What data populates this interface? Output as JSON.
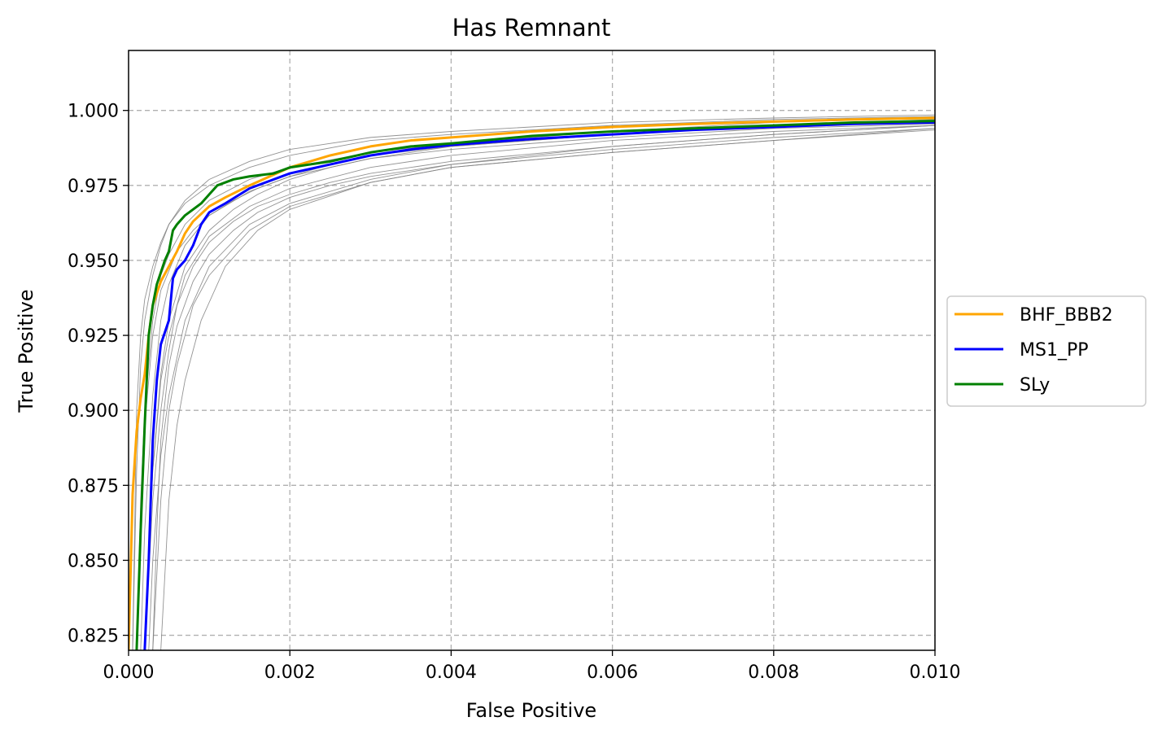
{
  "chart_data": {
    "type": "line",
    "title": "Has Remnant",
    "xlabel": "False Positive",
    "ylabel": "True Positive",
    "xlim": [
      0.0,
      0.01
    ],
    "ylim": [
      0.82,
      1.02
    ],
    "xticks": [
      0.0,
      0.002,
      0.004,
      0.006,
      0.008,
      0.01
    ],
    "xtick_labels": [
      "0.000",
      "0.002",
      "0.004",
      "0.006",
      "0.008",
      "0.010"
    ],
    "yticks": [
      0.825,
      0.85,
      0.875,
      0.9,
      0.925,
      0.95,
      0.975,
      1.0
    ],
    "ytick_labels": [
      "0.825",
      "0.850",
      "0.875",
      "0.900",
      "0.925",
      "0.950",
      "0.975",
      "1.000"
    ],
    "grid": true,
    "legend_position": "outside-right",
    "colors": {
      "axis": "#000000",
      "grid": "#b0b0b0",
      "background_curves": "#808080"
    },
    "series": [
      {
        "name": "BHF_BBB2",
        "color": "#ffa500",
        "x": [
          0.0,
          5e-05,
          0.0001,
          0.00015,
          0.0002,
          0.00025,
          0.0003,
          0.0004,
          0.0005,
          0.0006,
          0.0007,
          0.0008,
          0.001,
          0.0012,
          0.0015,
          0.002,
          0.0025,
          0.003,
          0.0035,
          0.004,
          0.005,
          0.006,
          0.007,
          0.008,
          0.009,
          0.01
        ],
        "y": [
          0.82,
          0.872,
          0.893,
          0.904,
          0.912,
          0.925,
          0.935,
          0.943,
          0.948,
          0.953,
          0.959,
          0.963,
          0.968,
          0.971,
          0.975,
          0.981,
          0.985,
          0.988,
          0.99,
          0.991,
          0.993,
          0.9945,
          0.9955,
          0.9963,
          0.997,
          0.9975
        ]
      },
      {
        "name": "MS1_PP",
        "color": "#0000ff",
        "x": [
          0.0002,
          0.00025,
          0.0003,
          0.00035,
          0.0004,
          0.0005,
          0.00055,
          0.0006,
          0.0007,
          0.0008,
          0.0009,
          0.001,
          0.0012,
          0.0015,
          0.002,
          0.0025,
          0.003,
          0.0035,
          0.004,
          0.005,
          0.006,
          0.007,
          0.008,
          0.009,
          0.01
        ],
        "y": [
          0.82,
          0.85,
          0.89,
          0.91,
          0.922,
          0.93,
          0.944,
          0.947,
          0.95,
          0.955,
          0.962,
          0.966,
          0.969,
          0.974,
          0.979,
          0.982,
          0.985,
          0.987,
          0.9885,
          0.9905,
          0.992,
          0.9935,
          0.9945,
          0.9955,
          0.996
        ]
      },
      {
        "name": "SLy",
        "color": "#008000",
        "x": [
          0.0001,
          0.00015,
          0.0002,
          0.00025,
          0.0003,
          0.00035,
          0.0004,
          0.00045,
          0.0005,
          0.00055,
          0.0006,
          0.0007,
          0.0008,
          0.0009,
          0.001,
          0.0011,
          0.0013,
          0.0015,
          0.0018,
          0.002,
          0.0025,
          0.003,
          0.0035,
          0.004,
          0.005,
          0.006,
          0.007,
          0.008,
          0.009,
          0.01
        ],
        "y": [
          0.82,
          0.86,
          0.895,
          0.925,
          0.935,
          0.942,
          0.946,
          0.95,
          0.953,
          0.96,
          0.962,
          0.965,
          0.967,
          0.969,
          0.972,
          0.975,
          0.977,
          0.978,
          0.979,
          0.981,
          0.983,
          0.986,
          0.988,
          0.989,
          0.9915,
          0.993,
          0.994,
          0.995,
          0.996,
          0.9965
        ]
      }
    ],
    "background_curves": [
      {
        "x": [
          5e-05,
          0.0001,
          0.00015,
          0.0002,
          0.0003,
          0.0004,
          0.0005,
          0.0007,
          0.001,
          0.0015,
          0.002,
          0.003,
          0.004,
          0.006,
          0.008,
          0.01
        ],
        "y": [
          0.82,
          0.9,
          0.925,
          0.937,
          0.948,
          0.956,
          0.962,
          0.969,
          0.975,
          0.981,
          0.985,
          0.99,
          0.992,
          0.995,
          0.997,
          0.998
        ]
      },
      {
        "x": [
          5e-05,
          0.0001,
          0.00015,
          0.0002,
          0.0003,
          0.0004,
          0.0005,
          0.0007,
          0.001,
          0.0015,
          0.002,
          0.003,
          0.004,
          0.006,
          0.008,
          0.01
        ],
        "y": [
          0.82,
          0.88,
          0.915,
          0.93,
          0.945,
          0.955,
          0.962,
          0.97,
          0.977,
          0.983,
          0.987,
          0.991,
          0.993,
          0.996,
          0.9975,
          0.9985
        ]
      },
      {
        "x": [
          0.0001,
          0.00015,
          0.0002,
          0.0003,
          0.0004,
          0.0005,
          0.0007,
          0.001,
          0.0015,
          0.002,
          0.003,
          0.004,
          0.006,
          0.008,
          0.01
        ],
        "y": [
          0.82,
          0.87,
          0.9,
          0.93,
          0.945,
          0.952,
          0.962,
          0.97,
          0.977,
          0.981,
          0.986,
          0.989,
          0.993,
          0.996,
          0.9975
        ]
      },
      {
        "x": [
          0.00015,
          0.0002,
          0.0003,
          0.0004,
          0.0005,
          0.0007,
          0.001,
          0.0015,
          0.002,
          0.003,
          0.004,
          0.006,
          0.008,
          0.01
        ],
        "y": [
          0.82,
          0.86,
          0.905,
          0.93,
          0.942,
          0.955,
          0.965,
          0.973,
          0.978,
          0.984,
          0.988,
          0.992,
          0.995,
          0.9965
        ]
      },
      {
        "x": [
          0.0002,
          0.00025,
          0.0003,
          0.0004,
          0.0005,
          0.0007,
          0.001,
          0.0015,
          0.002,
          0.003,
          0.004,
          0.006,
          0.008,
          0.01
        ],
        "y": [
          0.82,
          0.85,
          0.88,
          0.91,
          0.925,
          0.945,
          0.958,
          0.968,
          0.974,
          0.981,
          0.985,
          0.99,
          0.993,
          0.995
        ]
      },
      {
        "x": [
          0.00025,
          0.0003,
          0.0004,
          0.0005,
          0.0007,
          0.001,
          0.0015,
          0.002,
          0.003,
          0.004,
          0.006,
          0.008,
          0.01
        ],
        "y": [
          0.82,
          0.85,
          0.885,
          0.905,
          0.93,
          0.948,
          0.962,
          0.969,
          0.977,
          0.982,
          0.988,
          0.992,
          0.995
        ]
      },
      {
        "x": [
          0.0003,
          0.00035,
          0.0004,
          0.0005,
          0.0006,
          0.0008,
          0.001,
          0.0015,
          0.002,
          0.003,
          0.004,
          0.006,
          0.008,
          0.01
        ],
        "y": [
          0.82,
          0.845,
          0.87,
          0.9,
          0.915,
          0.935,
          0.945,
          0.96,
          0.968,
          0.976,
          0.981,
          0.986,
          0.99,
          0.994
        ]
      },
      {
        "x": [
          0.0004,
          0.00045,
          0.0005,
          0.0006,
          0.0007,
          0.0009,
          0.0012,
          0.0016,
          0.002,
          0.003,
          0.004,
          0.006,
          0.008,
          0.01
        ],
        "y": [
          0.82,
          0.845,
          0.87,
          0.895,
          0.91,
          0.93,
          0.948,
          0.96,
          0.967,
          0.976,
          0.981,
          0.986,
          0.99,
          0.9935
        ]
      },
      {
        "x": [
          0.0001,
          0.00015,
          0.0002,
          0.0003,
          0.0004,
          0.0006,
          0.0008,
          0.001,
          0.0013,
          0.0016,
          0.002,
          0.0025,
          0.003,
          0.004,
          0.006,
          0.008,
          0.01
        ],
        "y": [
          0.82,
          0.86,
          0.895,
          0.925,
          0.94,
          0.953,
          0.96,
          0.965,
          0.97,
          0.974,
          0.978,
          0.982,
          0.985,
          0.988,
          0.992,
          0.995,
          0.997
        ]
      },
      {
        "x": [
          0.0002,
          0.0003,
          0.0004,
          0.0005,
          0.0006,
          0.0008,
          0.001,
          0.0013,
          0.0016,
          0.002,
          0.0025,
          0.003,
          0.004,
          0.006,
          0.008,
          0.01
        ],
        "y": [
          0.82,
          0.87,
          0.9,
          0.92,
          0.935,
          0.948,
          0.956,
          0.963,
          0.968,
          0.972,
          0.976,
          0.979,
          0.983,
          0.988,
          0.992,
          0.995
        ]
      },
      {
        "x": [
          0.0003,
          0.00035,
          0.0004,
          0.0005,
          0.0006,
          0.0008,
          0.001,
          0.0013,
          0.0016,
          0.002,
          0.0025,
          0.003,
          0.004,
          0.006,
          0.008,
          0.01
        ],
        "y": [
          0.82,
          0.86,
          0.89,
          0.915,
          0.928,
          0.943,
          0.952,
          0.96,
          0.966,
          0.971,
          0.975,
          0.978,
          0.982,
          0.987,
          0.991,
          0.994
        ]
      },
      {
        "x": [
          0.0002,
          0.0003,
          0.0004,
          0.0005,
          0.0007,
          0.001,
          0.0013,
          0.0016,
          0.002,
          0.0025,
          0.003,
          0.004,
          0.006,
          0.008,
          0.01
        ],
        "y": [
          0.82,
          0.88,
          0.912,
          0.93,
          0.948,
          0.96,
          0.967,
          0.972,
          0.977,
          0.981,
          0.984,
          0.987,
          0.991,
          0.994,
          0.9955
        ]
      }
    ]
  }
}
